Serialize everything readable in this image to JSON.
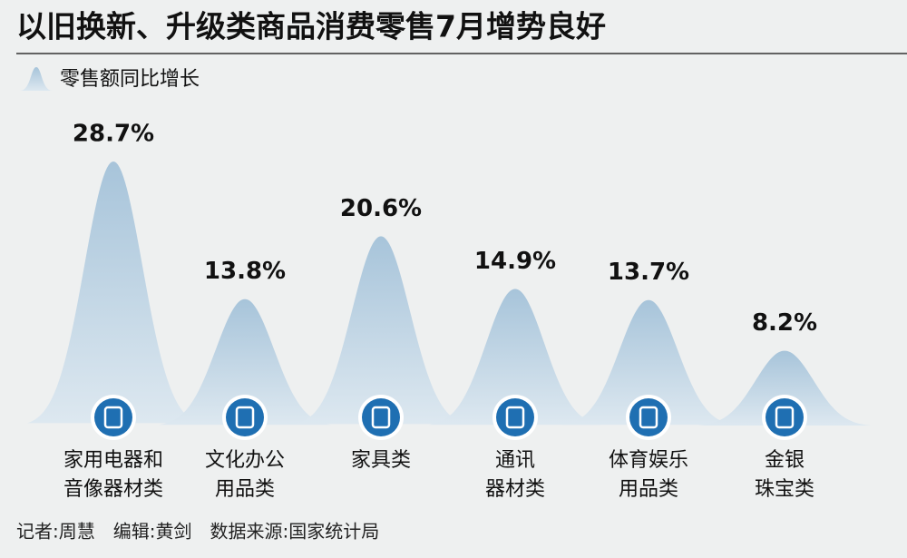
{
  "chart_data": {
    "type": "bell",
    "title": "以旧换新、升级类商品消费零售7月增势良好",
    "legend": "零售额同比增长",
    "categories": [
      [
        "家用电器和",
        "音像器材类"
      ],
      [
        "文化办公",
        "用品类"
      ],
      [
        "家具类"
      ],
      [
        "通讯",
        "器材类"
      ],
      [
        "体育娱乐",
        "用品类"
      ],
      [
        "金银",
        "珠宝类"
      ]
    ],
    "values": [
      28.7,
      13.8,
      20.6,
      14.9,
      13.7,
      8.2
    ],
    "value_labels": [
      "28.7%",
      "13.8%",
      "20.6%",
      "14.9%",
      "13.7%",
      "8.2%"
    ],
    "color": "#a7c4da",
    "footer": "记者:周慧　编辑:黄剑　数据来源:国家统计局"
  }
}
